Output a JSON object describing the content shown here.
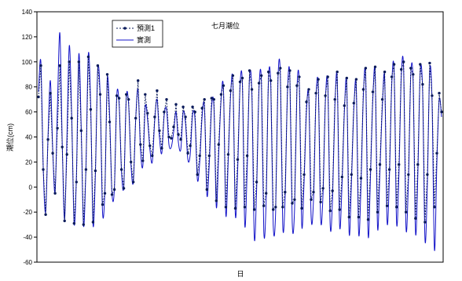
{
  "chart_data": {
    "type": "line",
    "title": "七月潮位",
    "xlabel": "日",
    "ylabel": "潮位(cm)",
    "ylim": [
      -60,
      140
    ],
    "yticks": [
      -60,
      -40,
      -20,
      0,
      20,
      40,
      60,
      80,
      100,
      120,
      140
    ],
    "grid": false,
    "legend_position": "top-left",
    "series": [
      {
        "name": "預測1",
        "style": "dotted-with-markers",
        "color": "#0a1a5a",
        "values": [
          72,
          97,
          14,
          -22,
          38,
          75,
          27,
          -5,
          47,
          97,
          32,
          -27,
          26,
          100,
          55,
          -29,
          4,
          100,
          45,
          -30,
          14,
          104,
          62,
          -28,
          13,
          97,
          74,
          -14,
          -5,
          90,
          52,
          -6,
          -2,
          73,
          71,
          14,
          -1,
          74,
          70,
          20,
          4,
          55,
          85,
          34,
          21,
          74,
          59,
          33,
          25,
          56,
          77,
          45,
          31,
          60,
          70,
          40,
          39,
          48,
          66,
          42,
          38,
          64,
          56,
          27,
          33,
          64,
          60,
          10,
          25,
          63,
          70,
          -2,
          25,
          71,
          70,
          -11,
          34,
          74,
          81,
          -16,
          26,
          77,
          89,
          -17,
          22,
          84,
          87,
          -16,
          25,
          93,
          78,
          -18,
          4,
          83,
          89,
          -15,
          -5,
          92,
          85,
          -18,
          -16,
          91,
          95,
          -16,
          -4,
          80,
          93,
          -13,
          -10,
          81,
          88,
          -17,
          10,
          68,
          78,
          -10,
          -4,
          75,
          86,
          -12,
          -1,
          73,
          88,
          -19,
          -3,
          70,
          92,
          -18,
          8,
          65,
          87,
          -24,
          10,
          67,
          86,
          -24,
          7,
          78,
          95,
          -26,
          14,
          76,
          96,
          -20,
          18,
          70,
          92,
          -15,
          14,
          88,
          98,
          -16,
          18,
          94,
          100,
          -20,
          10,
          95,
          90,
          -25,
          18,
          98,
          82,
          -28,
          10,
          99,
          73,
          -16,
          27,
          75,
          60
        ]
      },
      {
        "name": "實測",
        "style": "solid",
        "color": "#1414c8",
        "values": [
          76,
          100,
          16,
          -20,
          40,
          85,
          30,
          -4,
          64,
          123,
          35,
          -26,
          40,
          113,
          58,
          -29,
          10,
          106,
          49,
          -31,
          16,
          106,
          66,
          -30,
          10,
          94,
          72,
          -20,
          -2,
          86,
          58,
          -5,
          -1,
          73,
          66,
          13,
          1,
          71,
          66,
          18,
          4,
          54,
          78,
          30,
          17,
          64,
          54,
          30,
          20,
          53,
          70,
          40,
          27,
          57,
          62,
          34,
          32,
          44,
          60,
          36,
          30,
          60,
          51,
          22,
          26,
          58,
          54,
          6,
          20,
          56,
          64,
          -6,
          18,
          64,
          64,
          -16,
          26,
          70,
          78,
          -22,
          20,
          72,
          84,
          -22,
          14,
          81,
          82,
          -30,
          14,
          88,
          74,
          -40,
          -2,
          78,
          84,
          -35,
          -12,
          86,
          80,
          -30,
          -20,
          86,
          90,
          -30,
          -10,
          76,
          88,
          -28,
          -18,
          77,
          83,
          -30,
          4,
          60,
          72,
          -24,
          -10,
          70,
          80,
          -25,
          -6,
          68,
          82,
          -30,
          -10,
          64,
          86,
          -30,
          2,
          60,
          82,
          -36,
          4,
          62,
          80,
          -36,
          0,
          72,
          88,
          -38,
          8,
          70,
          90,
          -32,
          12,
          64,
          86,
          -27,
          8,
          82,
          92,
          -28,
          10,
          88,
          94,
          -32,
          4,
          89,
          84,
          -36,
          10,
          92,
          76,
          -42,
          2,
          93,
          68,
          -50,
          19,
          70,
          56
        ]
      }
    ]
  }
}
